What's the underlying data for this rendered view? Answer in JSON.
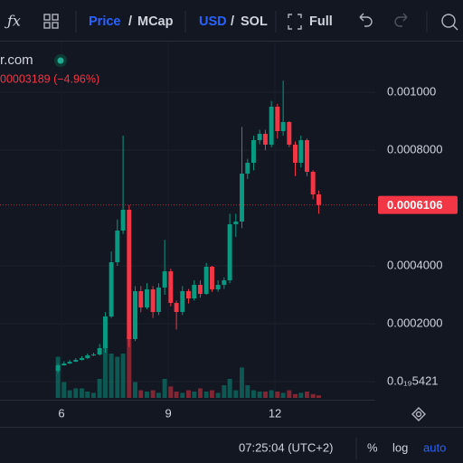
{
  "toolbar": {
    "price": "Price",
    "slash_1": "/",
    "mcap": "MCap",
    "usd": "USD",
    "slash_2": "/",
    "sol": "SOL",
    "full": "Full"
  },
  "legend": {
    "symbol": "r.com",
    "change": "00003189 (−4.96%)"
  },
  "status_bar": {
    "time": "07:25:04 (UTC+2)",
    "percent": "%",
    "log": "log",
    "auto": "auto"
  },
  "chart_data": {
    "type": "candlestick",
    "up_color": "#089981",
    "down_color": "#f23645",
    "x": [
      5.9,
      6.07,
      6.23,
      6.4,
      6.57,
      6.73,
      6.9,
      7.07,
      7.23,
      7.4,
      7.57,
      7.73,
      7.9,
      8.07,
      8.23,
      8.4,
      8.57,
      8.73,
      8.9,
      9.07,
      9.23,
      9.4,
      9.57,
      9.73,
      9.9,
      10.07,
      10.23,
      10.4,
      10.57,
      10.73,
      10.9,
      11.07,
      11.23,
      11.4,
      11.57,
      11.73,
      11.9,
      12.07,
      12.23,
      12.4,
      12.57,
      12.73,
      12.9,
      13.07,
      13.23
    ],
    "open": [
      3.75e-05,
      5.63e-05,
      6.25e-05,
      6.88e-05,
      7.5e-05,
      8.13e-05,
      9.06e-05,
      9.38e-05,
      0.0001156,
      0.000225,
      0.0004125,
      0.0005219,
      0.0005938,
      0.0001469,
      0.0003125,
      0.0002563,
      0.0003188,
      0.0002406,
      0.000325,
      0.0003813,
      0.0002719,
      0.0002406,
      0.0003125,
      0.0002875,
      0.0003344,
      0.0003031,
      0.0003969,
      0.0003188,
      0.0003344,
      0.00035,
      0.0005438,
      0.0005531,
      0.0007188,
      0.0007563,
      0.0008344,
      0.0008563,
      0.0008188,
      0.00095,
      0.0008656,
      0.0008969,
      0.0008188,
      0.0007563,
      0.0008344,
      0.000725,
      0.0006469
    ],
    "high": [
      6.2e-05,
      7e-05,
      7.5e-05,
      8.1e-05,
      8.8e-05,
      9.7e-05,
      0.0001,
      0.00013,
      0.00024,
      0.00045,
      0.00056,
      0.00085,
      0.00061,
      0.00033,
      0.00033,
      0.00034,
      0.00033,
      0.00034,
      0.00049,
      0.00039,
      0.00028,
      0.00033,
      0.00032,
      0.00035,
      0.00035,
      0.00041,
      0.0004,
      0.00035,
      0.00036,
      0.00058,
      0.00058,
      0.00088,
      0.00077,
      0.00085,
      0.00087,
      0.00087,
      0.00097,
      0.00096,
      0.00104,
      0.0009,
      0.00083,
      0.00085,
      0.00084,
      0.00073,
      0.00066
    ],
    "low": [
      3e-05,
      5.5e-05,
      6e-05,
      6.8e-05,
      7.3e-05,
      7.8e-05,
      8.8e-05,
      9e-05,
      0.0001,
      0.00022,
      0.0004,
      0.00051,
      0.00012,
      0.00014,
      0.00024,
      0.00025,
      0.00022,
      0.00023,
      0.0003,
      0.00026,
      0.00018,
      0.00023,
      0.00027,
      0.00028,
      0.00029,
      0.0003,
      0.00031,
      0.00031,
      0.00032,
      0.00034,
      0.0005,
      0.00053,
      0.0007,
      0.00073,
      0.00082,
      0.0008,
      0.00081,
      0.00084,
      0.00085,
      0.00081,
      0.00071,
      0.00074,
      0.00071,
      0.00063,
      0.00058
    ],
    "close": [
      5.63e-05,
      6.25e-05,
      6.88e-05,
      7.5e-05,
      8.13e-05,
      9.06e-05,
      9.38e-05,
      0.0001156,
      0.000225,
      0.0004125,
      0.0005219,
      0.0005938,
      0.0001469,
      0.0003125,
      0.0002563,
      0.0003188,
      0.0002406,
      0.000325,
      0.0003813,
      0.0002719,
      0.0002406,
      0.0003125,
      0.0002875,
      0.0003344,
      0.0003031,
      0.0003969,
      0.0003188,
      0.0003344,
      0.00035,
      0.0005438,
      0.0005531,
      0.0007188,
      0.0007563,
      0.0008344,
      0.0008563,
      0.0008188,
      0.00095,
      0.0008656,
      0.0008969,
      0.0008188,
      0.0007563,
      0.0008344,
      0.000725,
      0.0006469,
      0.0006106
    ],
    "volume": [
      65,
      25,
      12,
      15,
      15,
      10,
      8,
      30,
      88,
      70,
      65,
      70,
      98,
      25,
      12,
      10,
      12,
      8,
      30,
      18,
      10,
      8,
      12,
      10,
      15,
      10,
      12,
      8,
      20,
      30,
      12,
      48,
      20,
      12,
      10,
      10,
      12,
      10,
      8,
      12,
      6,
      8,
      10,
      6,
      4
    ],
    "xlim": [
      4.27,
      14.82
    ],
    "xticks": [
      6,
      9,
      12
    ],
    "ylim": [
      -5.63e-05,
      0.001175
    ],
    "yticks": [
      {
        "value": 0.001,
        "label": "0.001000"
      },
      {
        "value": 0.0008,
        "label": "0.0008000"
      },
      {
        "value": 0.0004,
        "label": "0.0004000"
      },
      {
        "value": 0.0002,
        "label": "0.0002000"
      },
      {
        "value": 5.421e-20,
        "label": "0.0₁₉5421"
      }
    ],
    "grid": true
  }
}
